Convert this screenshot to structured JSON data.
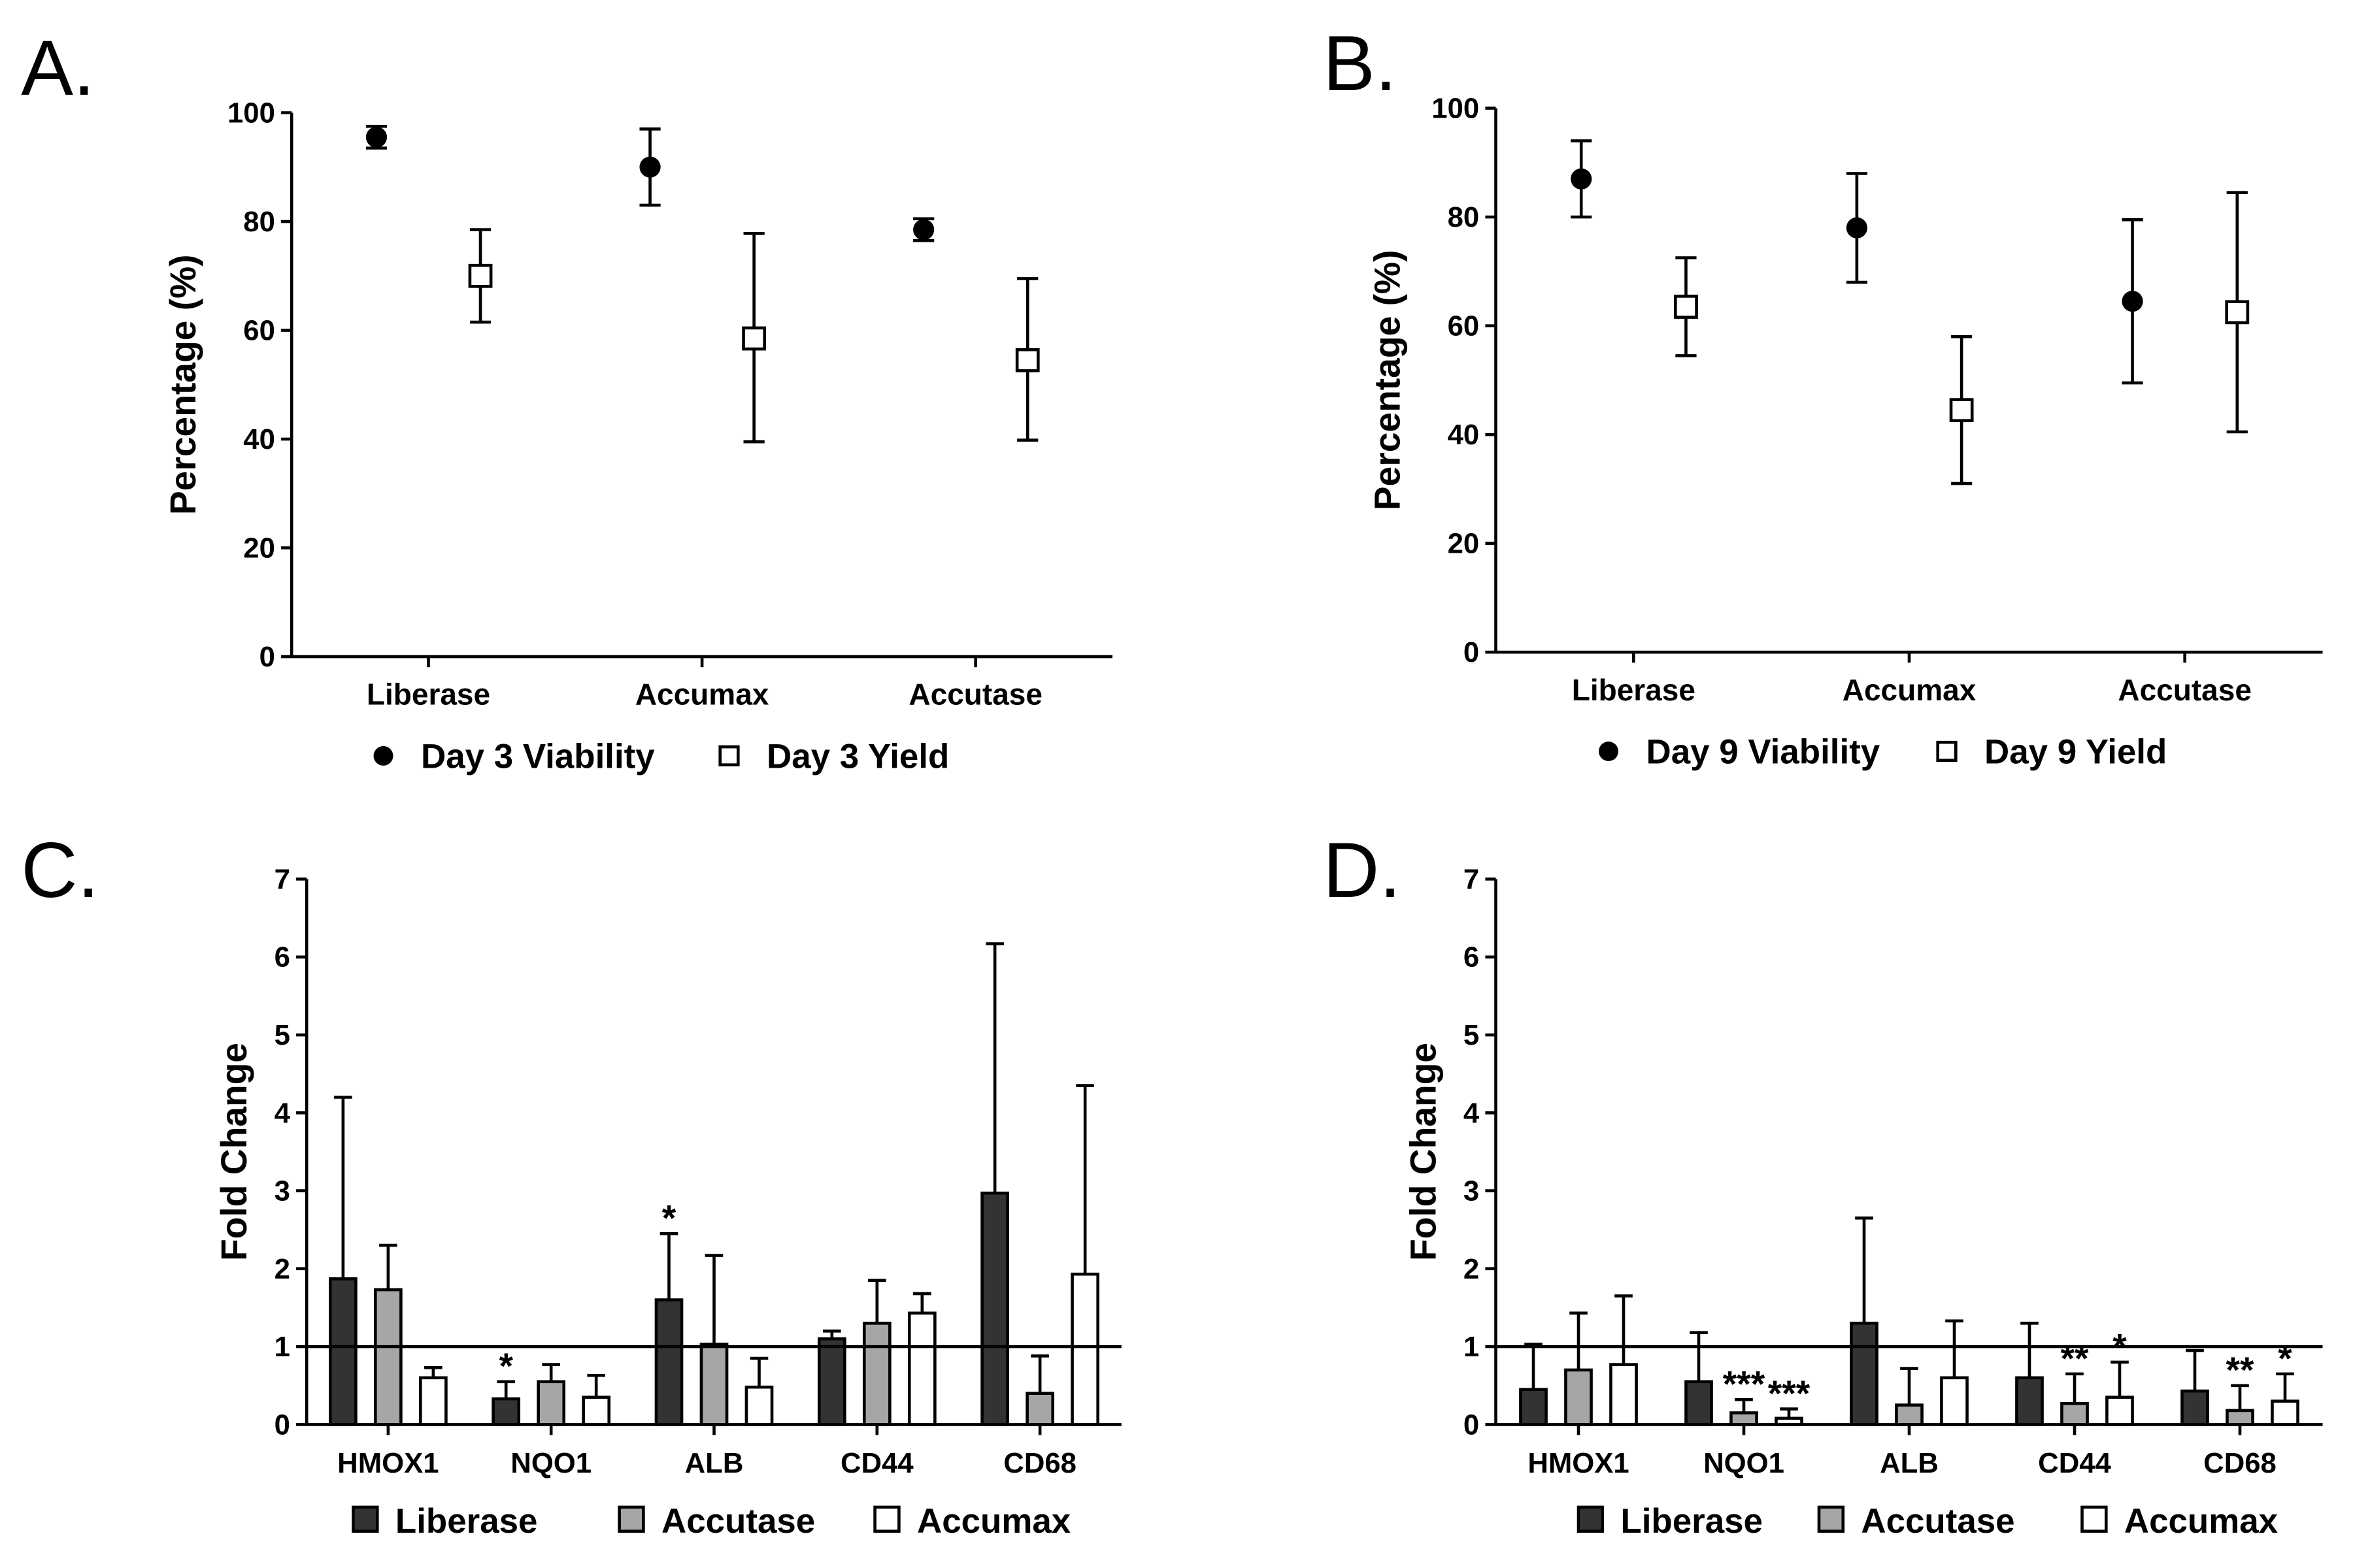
{
  "chart_data": [
    {
      "panel_label": "A.",
      "type": "scatter",
      "ylabel": "Percentage (%)",
      "ylim": [
        0,
        100
      ],
      "yticks": [
        0,
        20,
        40,
        60,
        80,
        100
      ],
      "categories": [
        "Liberase",
        "Accumax",
        "Accutase"
      ],
      "series": [
        {
          "name": "Day 3 Viability",
          "marker": "filled-circle",
          "values": [
            95.5,
            90,
            78.5
          ],
          "err_low": [
            93.5,
            83,
            76.5
          ],
          "err_high": [
            97.5,
            97,
            80.5
          ]
        },
        {
          "name": "Day 3 Yield",
          "marker": "open-square",
          "values": [
            70,
            58.5,
            54.5
          ],
          "err_low": [
            61.5,
            39.5,
            39.8
          ],
          "err_high": [
            78.5,
            77.8,
            69.5
          ]
        }
      ],
      "legend": "bottom"
    },
    {
      "panel_label": "B.",
      "type": "scatter",
      "ylabel": "Percentage (%)",
      "ylim": [
        0,
        100
      ],
      "yticks": [
        0,
        20,
        40,
        60,
        80,
        100
      ],
      "categories": [
        "Liberase",
        "Accumax",
        "Accutase"
      ],
      "series": [
        {
          "name": "Day 9 Viability",
          "marker": "filled-circle",
          "values": [
            87,
            78,
            64.5
          ],
          "err_low": [
            80,
            68,
            49.5
          ],
          "err_high": [
            94,
            88,
            79.5
          ]
        },
        {
          "name": "Day 9 Yield",
          "marker": "open-square",
          "values": [
            63.5,
            44.5,
            62.5
          ],
          "err_low": [
            54.5,
            31,
            40.5
          ],
          "err_high": [
            72.5,
            58,
            84.5
          ]
        }
      ],
      "legend": "bottom"
    },
    {
      "panel_label": "C.",
      "type": "bar",
      "ylabel": "Fold Change",
      "ylim": [
        0,
        7
      ],
      "yticks": [
        0,
        1,
        2,
        3,
        4,
        5,
        6,
        7
      ],
      "reference_line": 1,
      "categories": [
        "HMOX1",
        "NQO1",
        "ALB",
        "CD44",
        "CD68"
      ],
      "series": [
        {
          "name": "Liberase",
          "color": "#333333",
          "values": [
            1.87,
            0.33,
            1.6,
            1.1,
            2.97
          ],
          "err_high": [
            4.2,
            0.55,
            2.45,
            1.2,
            6.17
          ],
          "stars": [
            "",
            "*",
            "*",
            "",
            ""
          ]
        },
        {
          "name": "Accutase",
          "color": "#a6a6a6",
          "values": [
            1.73,
            0.55,
            1.03,
            1.3,
            0.4
          ],
          "err_high": [
            2.3,
            0.77,
            2.17,
            1.85,
            0.88
          ],
          "stars": [
            "",
            "",
            "",
            "",
            ""
          ]
        },
        {
          "name": "Accumax",
          "color": "#ffffff",
          "values": [
            0.6,
            0.35,
            0.48,
            1.43,
            1.93
          ],
          "err_high": [
            0.73,
            0.63,
            0.85,
            1.68,
            4.35
          ],
          "stars": [
            "",
            "",
            "",
            "",
            ""
          ]
        }
      ],
      "legend": "bottom"
    },
    {
      "panel_label": "D.",
      "type": "bar",
      "ylabel": "Fold Change",
      "ylim": [
        0,
        7
      ],
      "yticks": [
        0,
        1,
        2,
        3,
        4,
        5,
        6,
        7
      ],
      "reference_line": 1,
      "categories": [
        "HMOX1",
        "NQO1",
        "ALB",
        "CD44",
        "CD68"
      ],
      "series": [
        {
          "name": "Liberase",
          "color": "#333333",
          "values": [
            0.45,
            0.55,
            1.3,
            0.6,
            0.43
          ],
          "err_high": [
            1.03,
            1.18,
            2.65,
            1.3,
            0.95
          ],
          "stars": [
            "",
            "",
            "",
            "",
            ""
          ]
        },
        {
          "name": "Accutase",
          "color": "#a6a6a6",
          "values": [
            0.7,
            0.15,
            0.25,
            0.27,
            0.18
          ],
          "err_high": [
            1.43,
            0.32,
            0.72,
            0.65,
            0.5
          ],
          "stars": [
            "",
            "***",
            "",
            "**",
            "**"
          ]
        },
        {
          "name": "Accumax",
          "color": "#ffffff",
          "values": [
            0.77,
            0.08,
            0.6,
            0.35,
            0.3
          ],
          "err_high": [
            1.65,
            0.2,
            1.33,
            0.8,
            0.65
          ],
          "stars": [
            "",
            "***",
            "",
            "*",
            "*"
          ]
        }
      ],
      "legend": "bottom"
    }
  ]
}
